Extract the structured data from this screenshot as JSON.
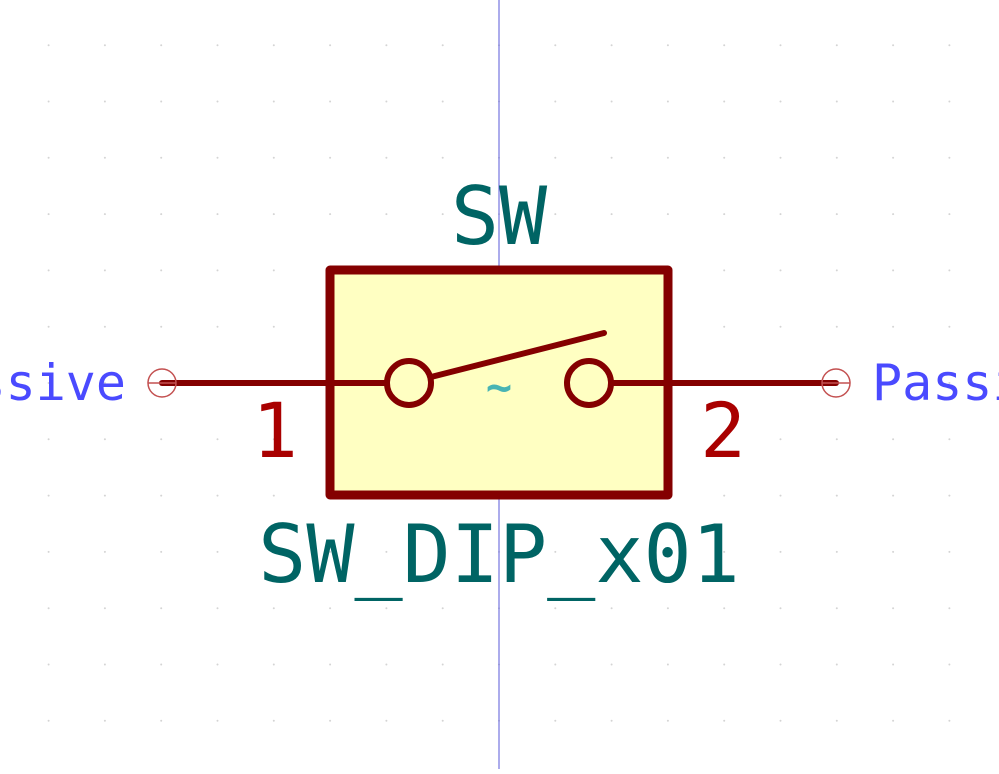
{
  "symbol": {
    "reference": "SW",
    "value": "SW_DIP_x01",
    "switch_marker": "~"
  },
  "pins": [
    {
      "number": "1",
      "electrical_type": "Passive"
    },
    {
      "number": "2",
      "electrical_type": "Passive"
    }
  ],
  "colors": {
    "body_outline": "#840000",
    "body_fill": "#ffffc2",
    "field_text": "#006464",
    "pin_line": "#840000",
    "pin_number": "#a90000",
    "pin_type_text": "#4a4aff",
    "pin_endpoint": "#c35050",
    "axis_line": "#5a5ad8",
    "grid_dot": "#d4d4d4",
    "switch_marker": "#48b4b4",
    "background": "#ffffff"
  }
}
